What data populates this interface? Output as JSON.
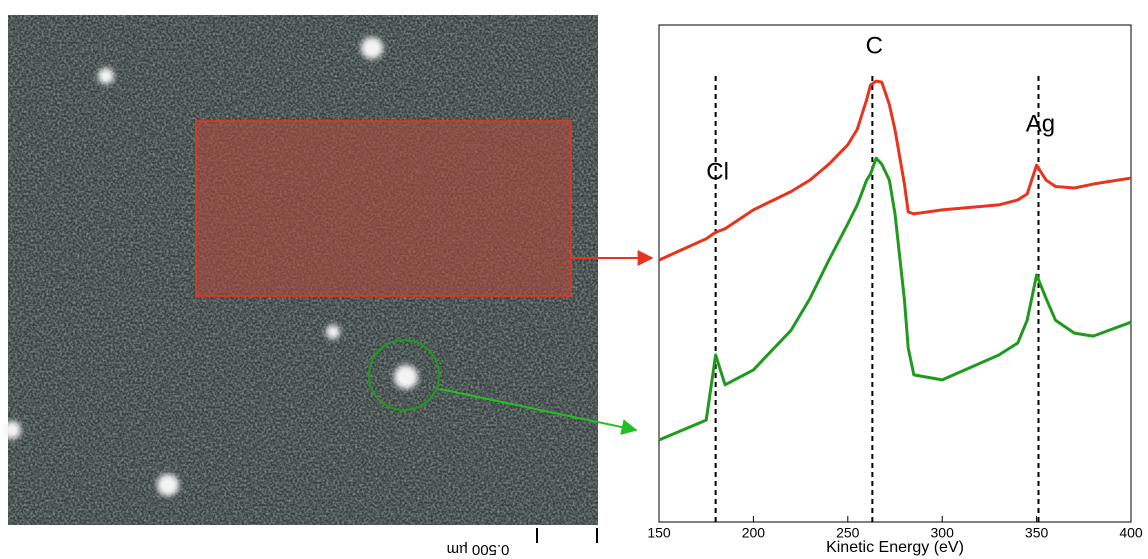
{
  "chart_data": {
    "type": "line",
    "xlabel": "Kinetic Energy (eV)",
    "x": [
      150,
      175,
      180,
      185,
      200,
      220,
      230,
      240,
      250,
      255,
      260,
      262,
      265,
      268,
      272,
      275,
      280,
      282,
      285,
      300,
      330,
      340,
      345,
      350,
      355,
      360,
      370,
      380,
      400
    ],
    "series": [
      {
        "color": "#e8341c",
        "values": [
          52.7,
          57,
          58.3,
          59,
          62.8,
          66.5,
          68.8,
          72,
          75.9,
          79,
          85,
          87.9,
          88.7,
          88.5,
          84,
          78.9,
          68,
          62.4,
          62,
          62.8,
          63.8,
          64.8,
          66,
          71.8,
          68.8,
          67.5,
          67.2,
          68,
          69.2
        ]
      },
      {
        "color": "#1f9a1f",
        "values": [
          16.5,
          20.5,
          33.6,
          27.6,
          30.6,
          38.6,
          45,
          52.7,
          60,
          63.8,
          68.8,
          70,
          73.2,
          72,
          68.8,
          62,
          44.7,
          35,
          29.6,
          28.6,
          33.6,
          36,
          40.6,
          49.7,
          45,
          40.6,
          38,
          37.4,
          40.2
        ]
      }
    ],
    "xlim": [
      150,
      400
    ],
    "xticks": [
      150,
      200,
      250,
      300,
      350,
      400
    ],
    "ylim": [
      0,
      100
    ],
    "annotations": [
      {
        "text": "Cl",
        "x": 180
      },
      {
        "text": "C",
        "x": 263
      },
      {
        "text": "Ag",
        "x": 351
      }
    ],
    "scale_bar_label": "0.500 µm"
  }
}
